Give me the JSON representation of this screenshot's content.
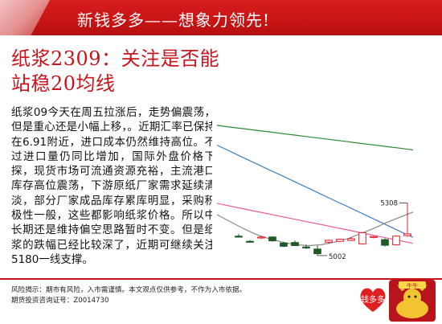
{
  "header": {
    "title": "新钱多多——想象力领先!"
  },
  "headline": [
    "纸浆2309：关注是否能",
    "站稳20均线"
  ],
  "body": "纸浆09今天在周五拉涨后，走势偏震荡，但是重心还是小幅上移，。近期汇率已保持在6.91附近，进口成本仍然维持高位。不过进口量仍同比增加，国际外盘价格下探，现货市场可流通资源充裕，主流港口库存高位震荡，下游原纸厂家需求延续清淡，部分厂家成品库存累库明显，采购积极性一般，这些都影响纸浆价格。所以中长期还是维持偏空思路暂时不变。但是纸浆的跌幅已经比较深了，近期可继续关注5180一线支撑。",
  "footer": {
    "line1": "风险揭示：期市有风险，入市需谨慎。本文观点仅供参考，不作为入市依据。",
    "line2": "期货投资咨询证号：Z0014730"
  },
  "logo_text": "钱多多",
  "mascot_text": "牛牛",
  "colors": {
    "brand_red": "#c8141b",
    "up": "#e0202a",
    "down": "#1f5a26"
  },
  "chart_data": {
    "type": "candlestick",
    "title": "",
    "annotations": [
      "5308",
      "5002"
    ],
    "candles": [
      {
        "open": 5115,
        "high": 5128,
        "low": 5108,
        "close": 5112
      },
      {
        "open": 5085,
        "high": 5092,
        "low": 5078,
        "close": 5082
      },
      {
        "open": 5105,
        "high": 5118,
        "low": 5098,
        "close": 5110
      },
      {
        "open": 5110,
        "high": 5115,
        "low": 5082,
        "close": 5088
      },
      {
        "open": 5075,
        "high": 5082,
        "low": 5052,
        "close": 5056
      },
      {
        "open": 5078,
        "high": 5090,
        "low": 5068,
        "close": 5060
      },
      {
        "open": 5052,
        "high": 5066,
        "low": 5040,
        "close": 5048
      },
      {
        "open": 5040,
        "high": 5060,
        "low": 5002,
        "close": 5013
      },
      {
        "open": 5080,
        "high": 5095,
        "low": 5070,
        "close": 5091
      },
      {
        "open": 5085,
        "high": 5100,
        "low": 5080,
        "close": 5097
      },
      {
        "open": 5090,
        "high": 5110,
        "low": 5085,
        "close": 5100
      },
      {
        "open": 5070,
        "high": 5140,
        "low": 5065,
        "close": 5135
      },
      {
        "open": 5108,
        "high": 5118,
        "low": 5102,
        "close": 5113
      },
      {
        "open": 5095,
        "high": 5102,
        "low": 5055,
        "close": 5062
      },
      {
        "open": 5065,
        "high": 5120,
        "low": 5060,
        "close": 5115
      },
      {
        "open": 5118,
        "high": 5308,
        "low": 5112,
        "close": 5128
      }
    ],
    "ma_lines": [
      {
        "color": "#2a8a33",
        "values": [
          5760,
          5750,
          5741,
          5731,
          5722,
          5712,
          5703,
          5693,
          5684,
          5674,
          5665,
          5655,
          5646,
          5636,
          5627,
          5617
        ]
      },
      {
        "color": "#3f7fc4",
        "values": [
          5645,
          5609,
          5573,
          5537,
          5501,
          5466,
          5430,
          5394,
          5358,
          5322,
          5287,
          5251,
          5215,
          5179,
          5143,
          5108
        ]
      },
      {
        "color": "#e85a9a",
        "values": [
          5306,
          5290,
          5275,
          5259,
          5244,
          5228,
          5213,
          5197,
          5182,
          5166,
          5151,
          5135,
          5120,
          5104,
          5089,
          5073
        ]
      },
      {
        "color": "#888888",
        "values": [
          5240,
          5200,
          5160,
          5125,
          5100,
          5080,
          5065,
          5060,
          5065,
          5080,
          5100,
          5130,
          5160,
          5195,
          5225,
          5255
        ]
      }
    ],
    "ylim": [
      4950,
      5900
    ]
  }
}
